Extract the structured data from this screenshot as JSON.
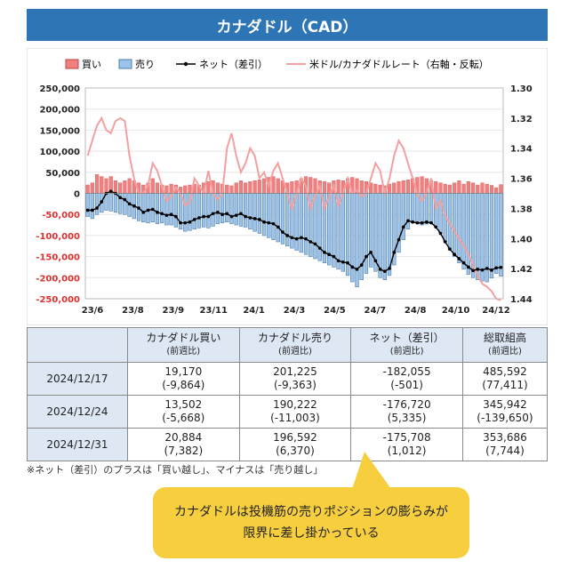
{
  "header": {
    "title": "カナダドル（CAD）"
  },
  "colors": {
    "buy": "#f08080",
    "sell": "#9dc3e6",
    "net": "#000000",
    "rate": "#f4a0a0",
    "accent": "#2e75b6"
  },
  "chart_data": {
    "type": "bar",
    "legend": {
      "placement": "top",
      "buy": "買い",
      "sell": "売り",
      "net": "ネット（差引）",
      "rate": "米ドル/カナダドルレート（右軸・反転）"
    },
    "y_left": {
      "ylim": [
        -250000,
        250000
      ],
      "ticks": [
        "250,000",
        "200,000",
        "150,000",
        "100,000",
        "50,000",
        "0",
        "-50,000",
        "-100,000",
        "-150,000",
        "-200,000",
        "-250,000"
      ]
    },
    "y_right": {
      "ylim": [
        1.3,
        1.44
      ],
      "inverted": true,
      "ticks": [
        "1.30",
        "1.32",
        "1.34",
        "1.36",
        "1.38",
        "1.40",
        "1.42",
        "1.44"
      ]
    },
    "x_ticks": [
      "23/6",
      "23/8",
      "23/9",
      "23/11",
      "24/1",
      "24/3",
      "24/5",
      "24/7",
      "24/8",
      "24/10",
      "24/12"
    ],
    "buy": [
      20000,
      25000,
      45000,
      40000,
      35000,
      40000,
      30000,
      25000,
      30000,
      35000,
      30000,
      25000,
      20000,
      25000,
      35000,
      25000,
      20000,
      18000,
      22000,
      20000,
      15000,
      18000,
      20000,
      22000,
      20000,
      25000,
      28000,
      30000,
      25000,
      22000,
      20000,
      18000,
      25000,
      30000,
      25000,
      28000,
      30000,
      32000,
      35000,
      38000,
      40000,
      35000,
      30000,
      25000,
      28000,
      30000,
      35000,
      40000,
      38000,
      35000,
      30000,
      28000,
      25000,
      30000,
      32000,
      30000,
      35000,
      38000,
      35000,
      30000,
      28000,
      25000,
      22000,
      20000,
      18000,
      22000,
      25000,
      28000,
      30000,
      32000,
      35000,
      38000,
      40000,
      35000,
      30000,
      28000,
      25000,
      22000,
      20000,
      25000,
      30000,
      22000,
      28000,
      25000,
      20000,
      25000,
      22000,
      19000,
      13500,
      20900
    ],
    "sell": [
      -55000,
      -60000,
      -50000,
      -45000,
      -40000,
      -42000,
      -45000,
      -48000,
      -50000,
      -55000,
      -60000,
      -65000,
      -68000,
      -70000,
      -68000,
      -72000,
      -70000,
      -75000,
      -75000,
      -80000,
      -85000,
      -90000,
      -88000,
      -85000,
      -82000,
      -80000,
      -82000,
      -78000,
      -72000,
      -70000,
      -68000,
      -72000,
      -75000,
      -78000,
      -80000,
      -85000,
      -90000,
      -95000,
      -100000,
      -105000,
      -110000,
      -115000,
      -120000,
      -125000,
      -130000,
      -135000,
      -140000,
      -145000,
      -150000,
      -155000,
      -160000,
      -165000,
      -170000,
      -175000,
      -180000,
      -185000,
      -195000,
      -210000,
      -222000,
      -205000,
      -190000,
      -175000,
      -185000,
      -200000,
      -205000,
      -195000,
      -170000,
      -140000,
      -110000,
      -85000,
      -70000,
      -72000,
      -75000,
      -73000,
      -72000,
      -80000,
      -95000,
      -115000,
      -135000,
      -150000,
      -165000,
      -180000,
      -192000,
      -200000,
      -205000,
      -208000,
      -210000,
      -201000,
      -190000,
      -196600
    ],
    "net": [
      -40000,
      -40000,
      -35000,
      -20000,
      0,
      5000,
      0,
      -10000,
      -15000,
      -25000,
      -30000,
      -35000,
      -45000,
      -40000,
      -38000,
      -45000,
      -48000,
      -52000,
      -50000,
      -55000,
      -70000,
      -70000,
      -68000,
      -62000,
      -58000,
      -55000,
      -55000,
      -48000,
      -45000,
      -50000,
      -48000,
      -55000,
      -52000,
      -48000,
      -55000,
      -58000,
      -60000,
      -62000,
      -68000,
      -70000,
      -72000,
      -80000,
      -92000,
      -100000,
      -105000,
      -108000,
      -105000,
      -108000,
      -115000,
      -120000,
      -130000,
      -140000,
      -145000,
      -150000,
      -160000,
      -163000,
      -165000,
      -175000,
      -180000,
      -170000,
      -150000,
      -140000,
      -160000,
      -180000,
      -185000,
      -178000,
      -140000,
      -110000,
      -80000,
      -65000,
      -68000,
      -70000,
      -70000,
      -68000,
      -70000,
      -80000,
      -95000,
      -115000,
      -132000,
      -145000,
      -155000,
      -165000,
      -175000,
      -183000,
      -180000,
      -182000,
      -178000,
      -182100,
      -176700,
      -175700
    ],
    "rate": [
      1.345,
      1.335,
      1.325,
      1.32,
      1.328,
      1.33,
      1.322,
      1.32,
      1.322,
      1.345,
      1.36,
      1.37,
      1.37,
      1.365,
      1.35,
      1.355,
      1.365,
      1.375,
      1.372,
      1.366,
      1.37,
      1.378,
      1.376,
      1.36,
      1.365,
      1.37,
      1.355,
      1.37,
      1.374,
      1.37,
      1.34,
      1.33,
      1.345,
      1.356,
      1.35,
      1.34,
      1.345,
      1.36,
      1.356,
      1.365,
      1.355,
      1.35,
      1.36,
      1.37,
      1.38,
      1.37,
      1.36,
      1.365,
      1.38,
      1.372,
      1.365,
      1.38,
      1.372,
      1.365,
      1.378,
      1.37,
      1.36,
      1.37,
      1.368,
      1.372,
      1.37,
      1.36,
      1.35,
      1.355,
      1.37,
      1.36,
      1.345,
      1.335,
      1.34,
      1.35,
      1.36,
      1.37,
      1.375,
      1.37,
      1.36,
      1.38,
      1.375,
      1.385,
      1.39,
      1.395,
      1.4,
      1.405,
      1.41,
      1.418,
      1.425,
      1.43,
      1.432,
      1.435,
      1.44,
      1.441
    ]
  },
  "table": {
    "headers": [
      {
        "main": "",
        "sub": ""
      },
      {
        "main": "カナダドル買い",
        "sub": "(前週比)"
      },
      {
        "main": "カナダドル売り",
        "sub": "(前週比)"
      },
      {
        "main": "ネット（差引）",
        "sub": "(前週比)"
      },
      {
        "main": "総取組高",
        "sub": "(前週比)"
      }
    ],
    "rows": [
      {
        "date": "2024/12/17",
        "buy": "19,170",
        "buy_chg": "(-9,864)",
        "sell": "201,225",
        "sell_chg": "(-9,363)",
        "net": "-182,055",
        "net_chg": "(-501)",
        "total": "485,592",
        "total_chg": "(77,411)"
      },
      {
        "date": "2024/12/24",
        "buy": "13,502",
        "buy_chg": "(-5,668)",
        "sell": "190,222",
        "sell_chg": "(-11,003)",
        "net": "-176,720",
        "net_chg": "(5,335)",
        "total": "345,942",
        "total_chg": "(-139,650)"
      },
      {
        "date": "2024/12/31",
        "buy": "20,884",
        "buy_chg": "(7,382)",
        "sell": "196,592",
        "sell_chg": "(6,370)",
        "net": "-175,708",
        "net_chg": "(1,012)",
        "total": "353,686",
        "total_chg": "(7,744)"
      }
    ]
  },
  "note": "※ネット（差引）のプラスは「買い越し」、マイナスは「売り越し」",
  "callout": {
    "line1": "カナダドルは投機筋の売りポジションの膨らみが",
    "line2": "限界に差し掛かっている"
  }
}
